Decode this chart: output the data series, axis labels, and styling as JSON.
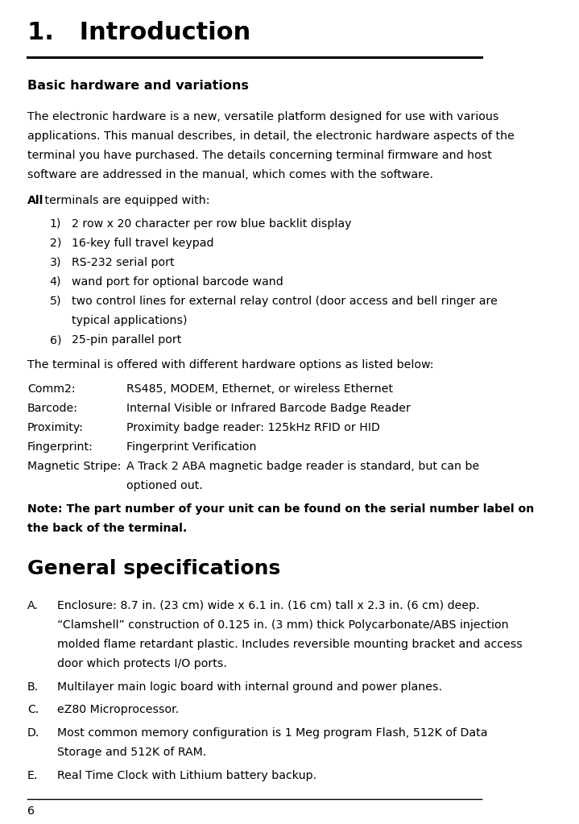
{
  "bg_color": "#ffffff",
  "title": "1.   Introduction",
  "section1_heading": "Basic hardware and variations",
  "intro_para": "The electronic hardware is a new, versatile platform designed for use with various\napplications. This manual describes, in detail, the electronic hardware aspects of the\nterminal you have purchased. The details concerning terminal firmware and host\nsoftware are addressed in the manual, which comes with the software.",
  "all_bold": "All",
  "all_rest": " terminals are equipped with:",
  "list_items": [
    "2 row x 20 character per row blue backlit display",
    "16-key full travel keypad",
    "RS-232 serial port",
    "wand port for optional barcode wand",
    "two control lines for external relay control (door access and bell ringer are\ntypical applications)",
    "25-pin parallel port"
  ],
  "options_intro": "The terminal is offered with different hardware options as listed below:",
  "options": [
    [
      "Comm2:",
      "RS485, MODEM, Ethernet, or wireless Ethernet"
    ],
    [
      "Barcode:",
      "Internal Visible or Infrared Barcode Badge Reader"
    ],
    [
      "Proximity:",
      "Proximity badge reader: 125kHz RFID or HID"
    ],
    [
      "Fingerprint:",
      "Fingerprint Verification"
    ],
    [
      "Magnetic Stripe:",
      "A Track 2 ABA magnetic badge reader is standard, but can be\noptioned out."
    ]
  ],
  "note_text": "Note: The part number of your unit can be found on the serial number label on\nthe back of the terminal.",
  "section2_heading": "General specifications",
  "spec_items": [
    [
      "A.",
      "Enclosure: 8.7 in. (23 cm) wide x 6.1 in. (16 cm) tall x 2.3 in. (6 cm) deep.\n“Clamshell” construction of 0.125 in. (3 mm) thick Polycarbonate/ABS injection\nmolded flame retardant plastic. Includes reversible mounting bracket and access\ndoor which protects I/O ports."
    ],
    [
      "B.",
      "Multilayer main logic board with internal ground and power planes."
    ],
    [
      "C.",
      "eZ80 Microprocessor."
    ],
    [
      "D.",
      "Most common memory configuration is 1 Meg program Flash, 512K of Data\nStorage and 512K of RAM."
    ],
    [
      "E.",
      "Real Time Clock with Lithium battery backup."
    ]
  ],
  "page_number": "6",
  "lm": 0.055,
  "rm": 0.97,
  "indent1": 0.1,
  "indent2": 0.145,
  "opt_col2": 0.255,
  "spec_col2": 0.115,
  "body_fs": 10.2,
  "heading1_fs": 22,
  "heading2_fs": 18,
  "subhead_fs": 11.5,
  "line_sp": 0.0235,
  "para_sp": 0.018
}
